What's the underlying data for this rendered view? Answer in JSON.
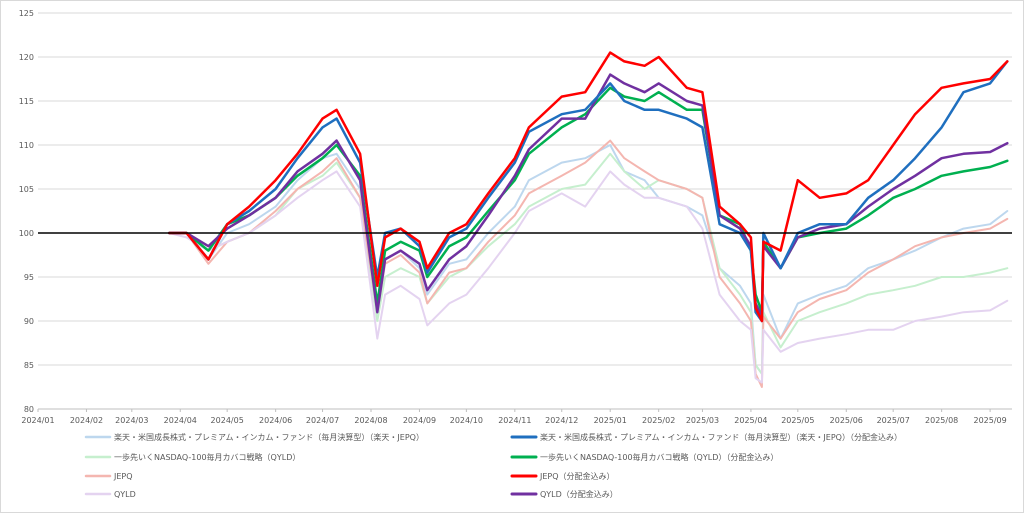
{
  "chart_data": {
    "type": "line",
    "ylim": [
      80,
      125
    ],
    "yticks": [
      80,
      85,
      90,
      95,
      100,
      105,
      110,
      115,
      120,
      125
    ],
    "reference_line": 100,
    "x_range": [
      "2024-01",
      "2025-09-15"
    ],
    "xticks": [
      "2024/01",
      "2024/02",
      "2024/03",
      "2024/04",
      "2024/05",
      "2024/06",
      "2024/07",
      "2024/08",
      "2024/09",
      "2024/10",
      "2024/11",
      "2024/12",
      "2025/01",
      "2025/02",
      "2025/03",
      "2025/04",
      "2025/05",
      "2025/06",
      "2025/07",
      "2025/08",
      "2025/09"
    ],
    "grid": "horizontal",
    "legend_position": "bottom",
    "x": [
      "2024-03-25",
      "2024-04-05",
      "2024-04-19",
      "2024-05-01",
      "2024-05-15",
      "2024-06-01",
      "2024-06-15",
      "2024-07-01",
      "2024-07-10",
      "2024-07-25",
      "2024-08-05",
      "2024-08-10",
      "2024-08-20",
      "2024-09-01",
      "2024-09-06",
      "2024-09-20",
      "2024-10-01",
      "2024-10-15",
      "2024-11-01",
      "2024-11-10",
      "2024-12-01",
      "2024-12-16",
      "2025-01-01",
      "2025-01-10",
      "2025-01-23",
      "2025-02-01",
      "2025-02-19",
      "2025-03-01",
      "2025-03-12",
      "2025-03-25",
      "2025-04-01",
      "2025-04-04",
      "2025-04-08",
      "2025-04-09",
      "2025-04-20",
      "2025-05-01",
      "2025-05-15",
      "2025-06-01",
      "2025-06-15",
      "2025-07-01",
      "2025-07-15",
      "2025-08-01",
      "2025-08-15",
      "2025-09-01",
      "2025-09-12"
    ],
    "series": [
      {
        "name": "楽天・米国成長株式・プレミアム・インカム・ファンド（毎月決算型）（楽天・JEPQ）",
        "color": "#bdd7ee",
        "width": 2,
        "values": [
          100,
          100,
          97,
          100,
          101,
          103,
          106,
          108.5,
          109,
          105,
          92,
          97,
          98,
          96,
          93,
          96.5,
          97,
          100,
          103,
          106,
          108,
          108.5,
          110,
          107,
          106,
          104,
          103,
          102,
          96,
          94,
          92,
          85,
          84,
          93,
          88,
          92,
          93,
          94,
          96,
          97,
          98,
          99.5,
          100.5,
          101,
          102.5
        ]
      },
      {
        "name": "楽天・米国成長株式・プレミアム・インカム・ファンド（毎月決算型）（楽天・JEPQ）（分配金込み）",
        "color": "#1f6fbf",
        "width": 2.5,
        "values": [
          100,
          100,
          97,
          101,
          102.5,
          105,
          108.5,
          112,
          113,
          108,
          95,
          100,
          100.5,
          98.5,
          95.5,
          99.5,
          100.5,
          104,
          108,
          111.5,
          113.5,
          114,
          117,
          115,
          114,
          114,
          113,
          112,
          101,
          100,
          98,
          91,
          90,
          100,
          96,
          100,
          101,
          101,
          104,
          106,
          108.5,
          112,
          116,
          117,
          119.5
        ]
      },
      {
        "name": "一歩先いくNASDAQ-100毎月カバコ戦略（QYLD）",
        "color": "#c6efce",
        "width": 2,
        "values": [
          100,
          100,
          98,
          99,
          100,
          102,
          105,
          106.5,
          108,
          104,
          90,
          95,
          96,
          95,
          92,
          95,
          96,
          98.5,
          101,
          103,
          105,
          105.5,
          109,
          107,
          105,
          106,
          105,
          104,
          96,
          93,
          91,
          85,
          84,
          91,
          87,
          90,
          91,
          92,
          93,
          93.5,
          94,
          95,
          95,
          95.5,
          96
        ]
      },
      {
        "name": "一歩先いくNASDAQ-100毎月カバコ戦略（QYLD）（分配金込み）",
        "color": "#00b050",
        "width": 2.5,
        "values": [
          100,
          100,
          98,
          101,
          102,
          104,
          106.5,
          108.5,
          110,
          106.5,
          92,
          98,
          99,
          98,
          95,
          98.5,
          99.5,
          102.5,
          106,
          109,
          112,
          113.5,
          116.5,
          115.5,
          115,
          116,
          114,
          114,
          102,
          101,
          98,
          93,
          91,
          99,
          96,
          99.5,
          100,
          100.5,
          102,
          104,
          105,
          106.5,
          107,
          107.5,
          108.2
        ]
      },
      {
        "name": "JEPQ",
        "color": "#f4b6b0",
        "width": 2,
        "values": [
          100,
          100,
          96.5,
          99,
          100,
          102.5,
          105,
          107,
          108.5,
          104,
          91,
          96.5,
          97.5,
          95.5,
          92,
          95.5,
          96,
          99,
          102,
          104.5,
          106.5,
          108,
          110.5,
          108.5,
          107,
          106,
          105,
          104,
          95,
          92,
          90,
          84,
          82.5,
          90.5,
          88,
          91,
          92.5,
          93.5,
          95.5,
          97,
          98.5,
          99.5,
          100,
          100.5,
          101.6
        ]
      },
      {
        "name": "JEPQ（分配金込み）",
        "color": "#ff0000",
        "width": 2.5,
        "values": [
          100,
          100,
          97,
          101,
          103,
          106,
          109,
          113,
          114,
          109,
          94,
          99.5,
          100.5,
          99,
          96,
          100,
          101,
          104.5,
          108.5,
          112,
          115.5,
          116,
          120.5,
          119.5,
          119,
          120,
          116.5,
          116,
          103,
          101,
          99.5,
          91.5,
          90,
          99,
          98,
          106,
          104,
          104.5,
          106,
          110,
          113.5,
          116.5,
          117,
          117.5,
          119.5
        ]
      },
      {
        "name": "QYLD",
        "color": "#e4d3f0",
        "width": 2,
        "values": [
          100,
          99.5,
          98,
          99,
          100,
          102,
          104,
          106,
          107,
          103,
          88,
          93,
          94,
          92.5,
          89.5,
          92,
          93,
          96,
          100,
          102.5,
          104.5,
          103,
          107,
          105.5,
          104,
          104,
          103,
          100.5,
          93,
          90,
          89,
          83.5,
          83,
          89,
          86.5,
          87.5,
          88,
          88.5,
          89,
          89,
          90,
          90.5,
          91,
          91.2,
          92.3
        ]
      },
      {
        "name": "QYLD（分配金込み）",
        "color": "#7030a0",
        "width": 2.5,
        "values": [
          100,
          100,
          98.5,
          100.5,
          102,
          104,
          107,
          109,
          110.5,
          106,
          91,
          97,
          98,
          96.5,
          93.5,
          97,
          98.5,
          102,
          106.5,
          109.5,
          113,
          113,
          118,
          117,
          116,
          117,
          115,
          114.5,
          102,
          100.5,
          98.5,
          92,
          90.5,
          98.5,
          96,
          99.5,
          100.5,
          101,
          103,
          105,
          106.5,
          108.5,
          109,
          109.2,
          110.2
        ]
      }
    ]
  }
}
